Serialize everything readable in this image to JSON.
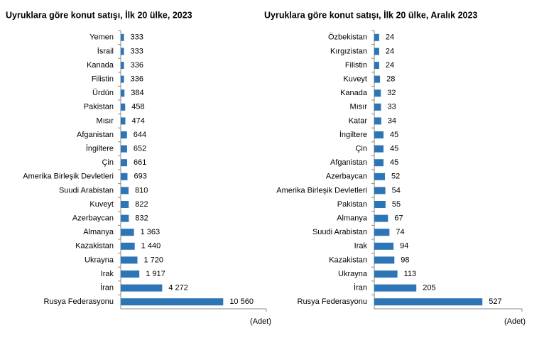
{
  "chart_data": [
    {
      "type": "bar",
      "orientation": "horizontal",
      "title": "Uyruklara göre konut satışı, İlk 20 ülke, 2023",
      "unit_label": "(Adet)",
      "categories": [
        "Yemen",
        "İsrail",
        "Kanada",
        "Filistin",
        "Ürdün",
        "Pakistan",
        "Mısır",
        "Afganistan",
        "İngiltere",
        "Çin",
        "Amerika Birleşik Devletleri",
        "Suudi Arabistan",
        "Kuveyt",
        "Azerbaycan",
        "Almanya",
        "Kazakistan",
        "Ukrayna",
        "Irak",
        "İran",
        "Rusya Federasyonu"
      ],
      "values": [
        333,
        333,
        336,
        336,
        384,
        458,
        474,
        644,
        652,
        661,
        693,
        810,
        822,
        832,
        1363,
        1440,
        1720,
        1917,
        4272,
        10560
      ],
      "value_labels": [
        "333",
        "333",
        "336",
        "336",
        "384",
        "458",
        "474",
        "644",
        "652",
        "661",
        "693",
        "810",
        "822",
        "832",
        "1 363",
        "1 440",
        "1 720",
        "1 917",
        "4 272",
        "10 560"
      ],
      "color": "#2e75b6",
      "xlim": [
        0,
        15000
      ]
    },
    {
      "type": "bar",
      "orientation": "horizontal",
      "title": "Uyruklara göre konut satışı, İlk 20 ülke, Aralık 2023",
      "unit_label": "(Adet)",
      "categories": [
        "Özbekistan",
        "Kırgızistan",
        "Filistin",
        "Kuveyt",
        "Kanada",
        "Mısır",
        "Katar",
        "İngiltere",
        "Çin",
        "Afganistan",
        "Azerbaycan",
        "Amerika Birleşik Devletleri",
        "Pakistan",
        "Almanya",
        "Suudi Arabistan",
        "Irak",
        "Kazakistan",
        "Ukrayna",
        "İran",
        "Rusya Federasyonu"
      ],
      "values": [
        24,
        24,
        24,
        28,
        32,
        33,
        34,
        45,
        45,
        45,
        52,
        54,
        55,
        67,
        74,
        94,
        98,
        113,
        205,
        527
      ],
      "color": "#2e75b6",
      "xlim": [
        0,
        720
      ]
    }
  ]
}
